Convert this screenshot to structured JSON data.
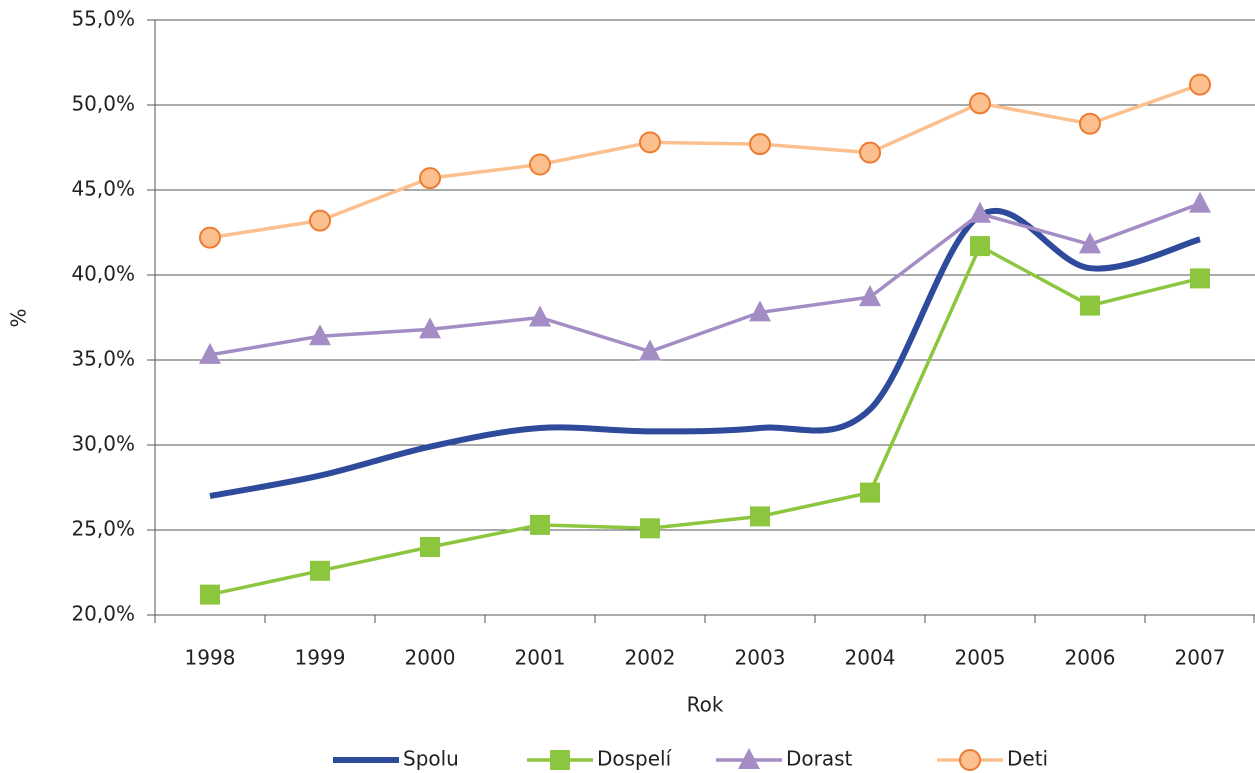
{
  "chart_data": {
    "type": "line",
    "x_label": "Rok",
    "y_label": "%",
    "categories": [
      "1998",
      "1999",
      "2000",
      "2001",
      "2002",
      "2003",
      "2004",
      "2005",
      "2006",
      "2007"
    ],
    "series": [
      {
        "name": "Spolu",
        "color": "#2e4a9a",
        "marker": "none",
        "smooth": true,
        "values": [
          27.0,
          28.2,
          29.9,
          31.0,
          30.8,
          31.0,
          32.1,
          43.5,
          40.4,
          42.1
        ]
      },
      {
        "name": "Dospelí",
        "color": "#8cc63f",
        "marker": "square",
        "smooth": false,
        "values": [
          21.2,
          22.6,
          24.0,
          25.3,
          25.1,
          25.8,
          27.2,
          41.7,
          38.2,
          39.8
        ]
      },
      {
        "name": "Dorast",
        "color": "#a48cc4",
        "marker": "triangle",
        "smooth": false,
        "values": [
          35.3,
          36.4,
          36.8,
          37.5,
          35.5,
          37.8,
          38.7,
          43.6,
          41.8,
          44.2
        ]
      },
      {
        "name": "Deti",
        "color": "#fbc08e",
        "marker": "circle",
        "marker_edge": "#ee7b30",
        "smooth": false,
        "values": [
          42.2,
          43.2,
          45.7,
          46.5,
          47.8,
          47.7,
          47.2,
          50.1,
          48.9,
          51.2
        ]
      }
    ],
    "ylim": [
      20,
      55
    ],
    "yticks": [
      {
        "value": 20,
        "label": "20,0%"
      },
      {
        "value": 25,
        "label": "25,0%"
      },
      {
        "value": 30,
        "label": "30,0%"
      },
      {
        "value": 35,
        "label": "35,0%"
      },
      {
        "value": 40,
        "label": "40,0%"
      },
      {
        "value": 45,
        "label": "45,0%"
      },
      {
        "value": 50,
        "label": "50,0%"
      },
      {
        "value": 55,
        "label": "55,0%"
      }
    ],
    "grid": true,
    "legend": "bottom"
  }
}
